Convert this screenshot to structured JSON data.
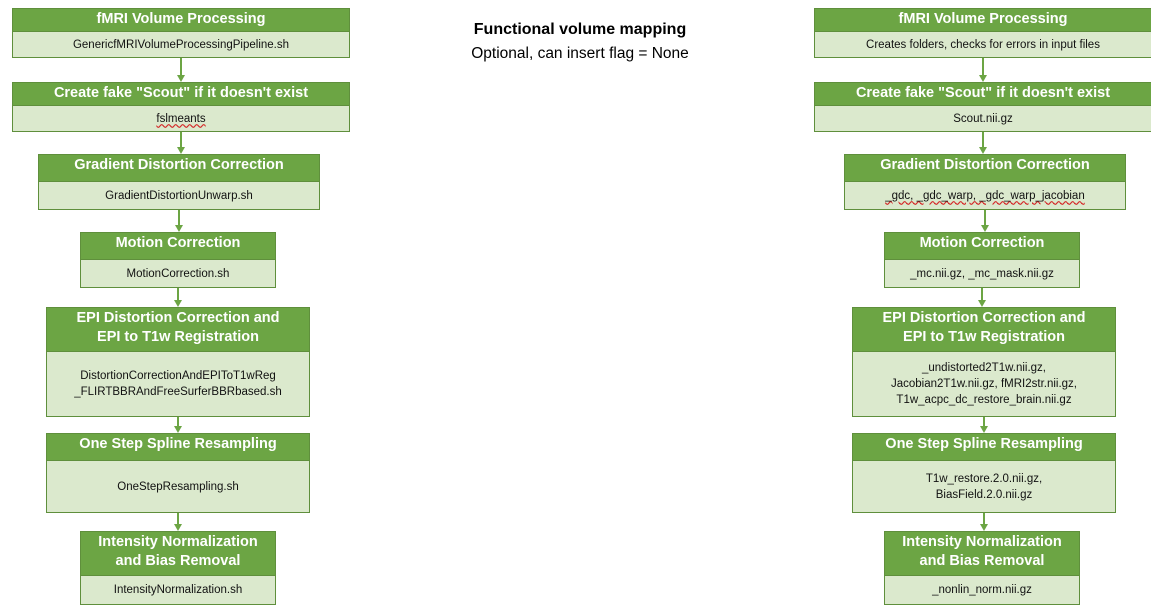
{
  "title": "Functional volume mapping",
  "subtitle": "Optional, can insert flag = None",
  "colors": {
    "header": "#6ca544",
    "body": "#dbe9cd",
    "border": "#5f8f3c",
    "arrow": "#6ca544"
  },
  "left": [
    {
      "header": [
        "fMRI Volume Processing"
      ],
      "body": [
        "GenericfMRIVolumeProcessingPipeline.sh"
      ]
    },
    {
      "header": [
        "Create fake \"Scout\" if it doesn't exist"
      ],
      "body": [
        "fslmeants"
      ]
    },
    {
      "header": [
        "Gradient Distortion Correction"
      ],
      "body": [
        "GradientDistortionUnwarp.sh"
      ]
    },
    {
      "header": [
        "Motion Correction"
      ],
      "body": [
        "MotionCorrection.sh"
      ]
    },
    {
      "header": [
        "EPI Distortion Correction and",
        "EPI to T1w Registration"
      ],
      "body": [
        "DistortionCorrectionAndEPIToT1wReg",
        "_FLIRTBBRAndFreeSurferBBRbased.sh"
      ]
    },
    {
      "header": [
        "One Step Spline Resampling"
      ],
      "body": [
        "OneStepResampling.sh"
      ]
    },
    {
      "header": [
        "Intensity Normalization",
        "and Bias Removal"
      ],
      "body": [
        "IntensityNormalization.sh"
      ]
    }
  ],
  "right": [
    {
      "header": [
        "fMRI Volume Processing"
      ],
      "body": [
        "Creates folders, checks for errors in input files"
      ]
    },
    {
      "header": [
        "Create fake \"Scout\" if it doesn't exist"
      ],
      "body": [
        "Scout.nii.gz"
      ]
    },
    {
      "header": [
        "Gradient Distortion Correction"
      ],
      "body": [
        "_gdc, _gdc_warp, _gdc_warp_jacobian"
      ]
    },
    {
      "header": [
        "Motion Correction"
      ],
      "body": [
        "_mc.nii.gz, _mc_mask.nii.gz"
      ]
    },
    {
      "header": [
        "EPI Distortion Correction and",
        "EPI to T1w Registration"
      ],
      "body": [
        "_undistorted2T1w.nii.gz,",
        "Jacobian2T1w.nii.gz, fMRI2str.nii.gz,",
        "T1w_acpc_dc_restore_brain.nii.gz"
      ]
    },
    {
      "header": [
        "One Step Spline Resampling"
      ],
      "body": [
        "T1w_restore.2.0.nii.gz,",
        "BiasField.2.0.nii.gz"
      ]
    },
    {
      "header": [
        "Intensity Normalization",
        "and Bias Removal"
      ],
      "body": [
        "_nonlin_norm.nii.gz"
      ]
    }
  ]
}
